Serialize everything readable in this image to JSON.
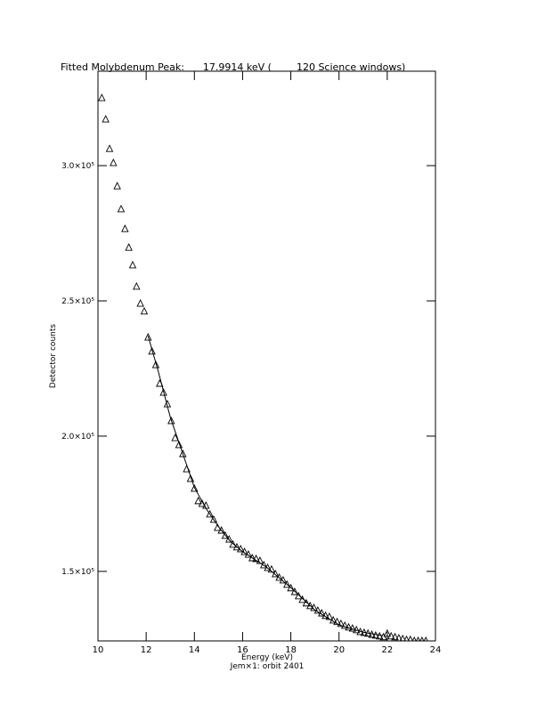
{
  "chart_data": {
    "type": "scatter",
    "title": "Fitted Molybdenum Peak:      17.9914 keV (        120 Science windows)",
    "xlabel": "Energy (keV)",
    "subxlabel": "Jem×1: orbit 2401",
    "ylabel": "Detector counts",
    "xlim": [
      10,
      24
    ],
    "xticks": [
      10,
      12,
      14,
      16,
      18,
      20,
      22,
      24
    ],
    "ylim": [
      124300,
      334900
    ],
    "yticks": [
      {
        "value": 150000,
        "label": "1.5×10⁵"
      },
      {
        "value": 200000,
        "label": "2.0×10⁵"
      },
      {
        "value": 250000,
        "label": "2.5×10⁵"
      },
      {
        "value": 300000,
        "label": "3.0×10⁵"
      }
    ],
    "series": [
      {
        "type": "scatter",
        "color": "#000000",
        "x": [
          10.16,
          10.32,
          10.48,
          10.64,
          10.8,
          10.96,
          11.12,
          11.28,
          11.44,
          11.6,
          11.76,
          11.92,
          12.08,
          12.24,
          12.4,
          12.56,
          12.72,
          12.88,
          13.04,
          13.2,
          13.36,
          13.52,
          13.68,
          13.84,
          14.0,
          14.16,
          14.32,
          14.48,
          14.64,
          14.8,
          14.96,
          15.12,
          15.28,
          15.44,
          15.6,
          15.76,
          15.92,
          16.08,
          16.24,
          16.4,
          16.56,
          16.72,
          16.88,
          17.04,
          17.2,
          17.36,
          17.52,
          17.68,
          17.84,
          18.0,
          18.16,
          18.32,
          18.48,
          18.64,
          18.8,
          18.96,
          19.12,
          19.28,
          19.44,
          19.6,
          19.76,
          19.92,
          20.08,
          20.24,
          20.4,
          20.56,
          20.72,
          20.88,
          21.04,
          21.2,
          21.36,
          21.52,
          21.68,
          21.84,
          22.0,
          22.16,
          22.32,
          22.48,
          22.64,
          22.8,
          22.96,
          23.12,
          23.28,
          23.44,
          23.6
        ],
        "values": [
          325000,
          317100,
          306200,
          301000,
          292400,
          283900,
          276600,
          269700,
          263200,
          255300,
          249000,
          246100,
          236500,
          231300,
          226300,
          219400,
          216100,
          211800,
          205600,
          199300,
          196700,
          193400,
          187800,
          184200,
          180600,
          176000,
          175000,
          174300,
          171100,
          169100,
          166100,
          165100,
          163200,
          161800,
          159900,
          158900,
          158200,
          157200,
          156200,
          154900,
          154600,
          153900,
          152300,
          151300,
          150700,
          149000,
          147700,
          146700,
          145100,
          143800,
          142400,
          140800,
          139500,
          138200,
          137200,
          136500,
          135500,
          134500,
          133600,
          133200,
          131900,
          131300,
          130600,
          129900,
          129300,
          128900,
          128300,
          127600,
          127300,
          127000,
          126600,
          126300,
          126000,
          125700,
          127000,
          126000,
          125700,
          125300,
          125000,
          124700,
          124700,
          124300,
          124300,
          124300,
          124300
        ]
      },
      {
        "type": "line",
        "color": "#000000",
        "x": [
          12.08,
          12.5,
          13.0,
          13.5,
          14.0,
          14.5,
          15.0,
          15.5,
          16.0,
          17.0,
          18.0,
          19.0,
          20.0,
          21.0,
          21.8
        ],
        "values": [
          237000,
          224000,
          207000,
          194000,
          181000,
          173000,
          166500,
          161000,
          157300,
          151500,
          144000,
          135700,
          130200,
          127500,
          126200
        ]
      }
    ]
  }
}
